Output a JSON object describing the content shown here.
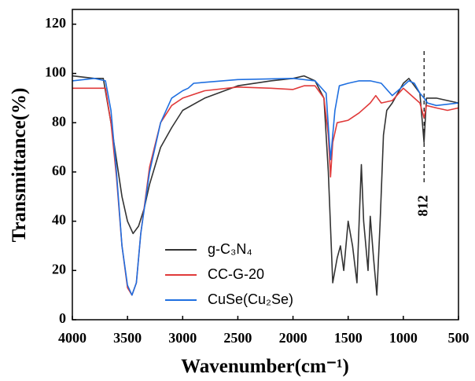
{
  "chart_data": {
    "type": "line",
    "x_label": "Wavenumber(cm⁻¹)",
    "y_label": "Transmittance(%)",
    "xlim": [
      4000,
      500
    ],
    "xticks": [
      4000,
      3500,
      3000,
      2500,
      2000,
      1500,
      1000,
      500
    ],
    "ylim": [
      0,
      126
    ],
    "yticks": [
      0,
      20,
      40,
      60,
      80,
      100,
      120
    ],
    "annotations": [
      {
        "x": 812
      }
    ],
    "series": [
      {
        "name": "g-C₃N₄",
        "color": "#333333",
        "x": [
          4000,
          3800,
          3720,
          3650,
          3600,
          3550,
          3500,
          3450,
          3400,
          3350,
          3300,
          3200,
          3100,
          3000,
          2800,
          2500,
          2200,
          2000,
          1900,
          1800,
          1720,
          1680,
          1640,
          1600,
          1570,
          1540,
          1500,
          1460,
          1420,
          1400,
          1380,
          1360,
          1320,
          1300,
          1270,
          1240,
          1210,
          1180,
          1150,
          1100,
          1000,
          950,
          900,
          850,
          812,
          790,
          700,
          600,
          500
        ],
        "values": [
          99,
          98,
          98,
          80,
          65,
          50,
          40,
          35,
          38,
          45,
          55,
          70,
          78,
          85,
          90,
          95,
          97,
          98,
          99,
          97,
          90,
          60,
          15,
          25,
          30,
          20,
          40,
          30,
          15,
          40,
          63,
          40,
          20,
          42,
          25,
          10,
          40,
          75,
          85,
          88,
          96,
          98,
          95,
          92,
          72,
          90,
          90,
          89,
          88
        ]
      },
      {
        "name": "CC-G-20",
        "color": "#e03a3a",
        "x": [
          4000,
          3700,
          3650,
          3600,
          3550,
          3500,
          3460,
          3420,
          3380,
          3300,
          3200,
          3100,
          3000,
          2800,
          2500,
          2200,
          2000,
          1900,
          1800,
          1720,
          1680,
          1660,
          1640,
          1600,
          1500,
          1400,
          1300,
          1250,
          1200,
          1100,
          1000,
          950,
          900,
          850,
          812,
          790,
          700,
          600,
          500
        ],
        "values": [
          94,
          94,
          80,
          58,
          30,
          13,
          10,
          15,
          35,
          62,
          80,
          87,
          90,
          93,
          94.5,
          94,
          93.5,
          95,
          95,
          90,
          75,
          58,
          72,
          80,
          81,
          84,
          88,
          91,
          88,
          89,
          94,
          92,
          90,
          88,
          82,
          87,
          86,
          85,
          86
        ]
      },
      {
        "name": "CuSe(Cu₂Se)",
        "color": "#1f6fe0",
        "x": [
          4000,
          3800,
          3700,
          3650,
          3600,
          3550,
          3500,
          3460,
          3420,
          3380,
          3300,
          3200,
          3100,
          3000,
          2950,
          2900,
          2500,
          2000,
          1800,
          1700,
          1660,
          1620,
          1580,
          1500,
          1400,
          1300,
          1200,
          1100,
          1000,
          950,
          900,
          850,
          812,
          780,
          700,
          600,
          500
        ],
        "values": [
          97,
          98,
          97,
          85,
          60,
          30,
          14,
          10,
          15,
          35,
          60,
          80,
          90,
          93,
          94,
          96,
          97.5,
          98,
          97,
          92,
          65,
          85,
          95,
          96,
          97,
          97,
          96,
          91,
          95,
          97,
          96,
          92,
          90,
          88,
          87,
          87.5,
          88
        ]
      }
    ]
  }
}
